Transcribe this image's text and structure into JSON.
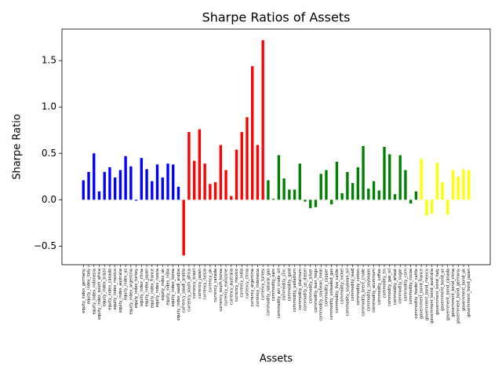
{
  "chart_data": {
    "type": "bar",
    "title": "Sharpe Ratios of Assets",
    "x_label": "Assets",
    "y_label": "Sharpe Ratio",
    "categories": [
      "equity_index_germany",
      "equity_index_italy",
      "equity_index_indonesia",
      "equity_index_south_africa",
      "equity_index_brazil",
      "equity_index_canada",
      "equity_index_mexico",
      "equity_index_australia",
      "equity_index_us",
      "equity_index_argentina",
      "equity_index_turkey",
      "equity_index_china",
      "equity_index_japan",
      "equity_index_france",
      "equity_index_russia",
      "equity_index_uk",
      "equity_index_india",
      "equity_index_korea",
      "equity_index_saudi_arabia",
      "currency_saudi_arabia",
      "currency_south_africa",
      "currency_brazil",
      "currency_japan",
      "currency_russia",
      "currency_uk",
      "currency_canada",
      "currency_south_korea",
      "currency_eurozone",
      "currency_australia",
      "currency_mexico",
      "currency_india",
      "currency_china",
      "currency_argentina",
      "currency_indonesia",
      "currency_turkey",
      "commodity_natural_gas",
      "commodity_oats",
      "commodity_wti_crude_oil",
      "commodity_zinc",
      "commodity_gold",
      "commodity_palladium",
      "commodity_platinum",
      "commodity_us_diesel",
      "commodity_silver",
      "commodity_lean_hogs",
      "commodity_soybean_meal",
      "commodity_copper",
      "commodity_unleaded_gas",
      "commodity_live_cattle",
      "commodity_nickel",
      "commodity_soybean_oil",
      "commodity_lead",
      "commodity_cotton",
      "commodity_brent_crude",
      "commodity_soybeans",
      "commodity_aluminum",
      "commodity_coffee",
      "commodity_tin",
      "commodity_gas_oil",
      "commodity_wheat",
      "commodity_sugar",
      "commodity_corn",
      "commodity_cocoa",
      "commodity_feeder_cattle",
      "government_bond_france",
      "government_bond_mexico",
      "government_bond_australia",
      "government_bond_italy",
      "government_bond_us",
      "government_bond_canada",
      "government_bond_china",
      "government_bond_germany",
      "government_bond_uk",
      "government_bond_japan"
    ],
    "values": [
      0.21,
      0.3,
      0.5,
      0.09,
      0.3,
      0.35,
      0.24,
      0.32,
      0.47,
      0.36,
      -0.01,
      0.45,
      0.33,
      0.2,
      0.38,
      0.24,
      0.39,
      0.38,
      0.14,
      -0.6,
      0.73,
      0.42,
      0.76,
      0.39,
      0.17,
      0.19,
      0.59,
      0.32,
      0.04,
      0.54,
      0.73,
      0.89,
      1.44,
      0.59,
      1.72,
      0.21,
      0.01,
      0.48,
      0.23,
      0.11,
      0.11,
      0.39,
      -0.02,
      -0.09,
      -0.08,
      0.28,
      0.32,
      -0.05,
      0.41,
      0.07,
      0.3,
      0.18,
      0.35,
      0.58,
      0.12,
      0.2,
      0.1,
      0.57,
      0.49,
      0.06,
      0.48,
      0.32,
      -0.04,
      0.09,
      0.44,
      -0.17,
      -0.15,
      0.4,
      0.19,
      -0.16,
      0.32,
      0.25,
      0.33,
      0.32
    ],
    "colors": [
      "blue",
      "blue",
      "blue",
      "blue",
      "blue",
      "blue",
      "blue",
      "blue",
      "blue",
      "blue",
      "blue",
      "blue",
      "blue",
      "blue",
      "blue",
      "blue",
      "blue",
      "blue",
      "blue",
      "red",
      "red",
      "red",
      "red",
      "red",
      "red",
      "red",
      "red",
      "red",
      "red",
      "red",
      "red",
      "red",
      "red",
      "red",
      "red",
      "green",
      "green",
      "green",
      "green",
      "green",
      "green",
      "green",
      "green",
      "green",
      "green",
      "green",
      "green",
      "green",
      "green",
      "green",
      "green",
      "green",
      "green",
      "green",
      "green",
      "green",
      "green",
      "green",
      "green",
      "green",
      "green",
      "green",
      "green",
      "green",
      "yellow",
      "yellow",
      "yellow",
      "yellow",
      "yellow",
      "yellow",
      "yellow",
      "yellow",
      "yellow",
      "yellow"
    ],
    "ylim": [
      -0.7,
      1.84
    ],
    "yticks": [
      {
        "value": -0.5,
        "label": "−0.5"
      },
      {
        "value": 0.0,
        "label": "0.0"
      },
      0.5,
      {
        "value": 1.0,
        "label": "1.0"
      },
      1.5
    ]
  }
}
